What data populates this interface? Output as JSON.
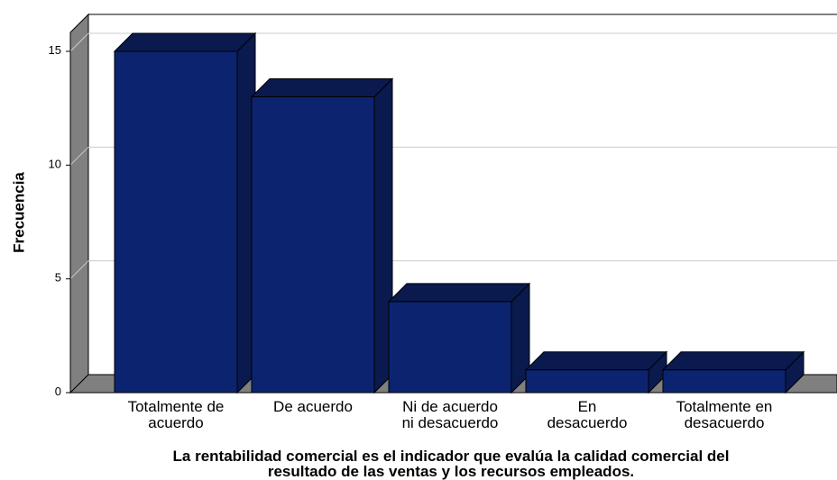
{
  "chart_data": {
    "type": "bar3d",
    "categories": [
      "Totalmente de\nacuerdo",
      "De acuerdo",
      "Ni de acuerdo\nni desacuerdo",
      "En\ndesacuerdo",
      "Totalmente en\ndesacuerdo"
    ],
    "values": [
      15,
      13,
      4,
      1,
      1
    ],
    "color": "#0c2370",
    "ylim": [
      0,
      15
    ],
    "yticks": [
      0,
      5,
      10,
      15
    ],
    "grid": true,
    "ylabel": "Frecuencia",
    "xlabel": "La rentabilidad comercial es el indicador que evalúa la calidad comercial del\nresultado de las ventas y los recursos empleados."
  }
}
